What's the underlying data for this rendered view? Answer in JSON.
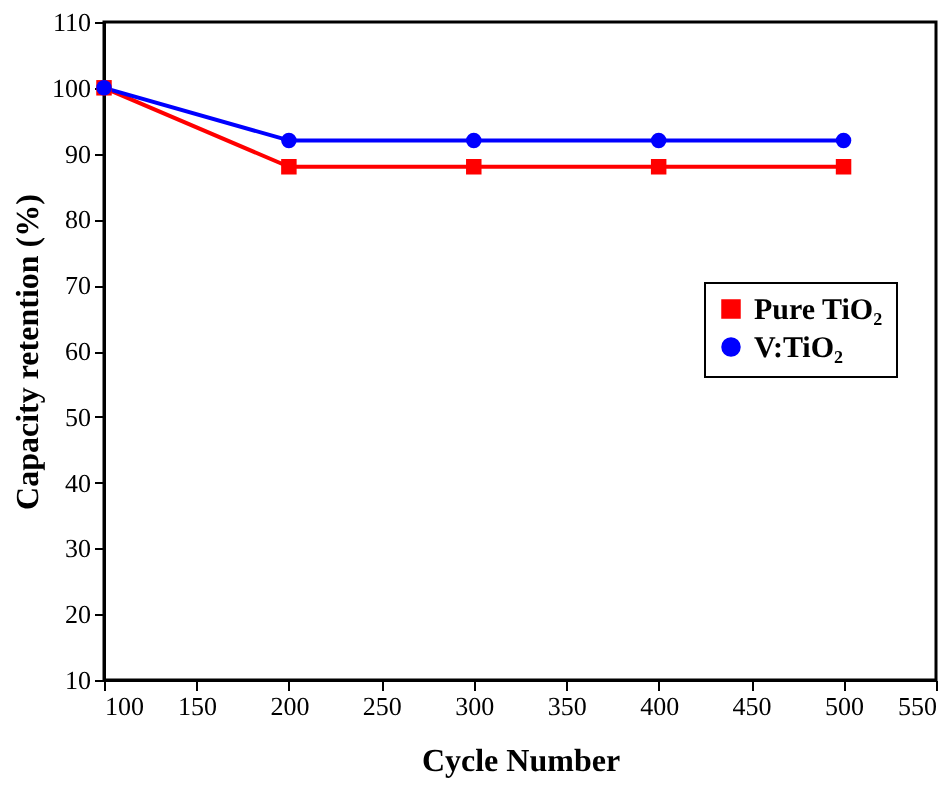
{
  "chart_data": {
    "type": "line",
    "xlabel": "Cycle Number",
    "ylabel": "Capacity retention (%)",
    "x": [
      100,
      200,
      300,
      400,
      500
    ],
    "series": [
      {
        "name": "Pure TiO₂",
        "color": "#ff0000",
        "marker": "square",
        "values": [
          100,
          88,
          88,
          88,
          88
        ]
      },
      {
        "name": "V:TiO₂",
        "color": "#0000ff",
        "marker": "circle",
        "values": [
          100,
          92,
          92,
          92,
          92
        ]
      }
    ],
    "xlim": [
      100,
      550
    ],
    "xticks": [
      100,
      150,
      200,
      250,
      300,
      350,
      400,
      450,
      500,
      550
    ],
    "ylim": [
      10,
      110
    ],
    "yticks": [
      10,
      20,
      30,
      40,
      50,
      60,
      70,
      80,
      90,
      100,
      110
    ],
    "grid": false,
    "legend": "right",
    "line_style": "solid"
  }
}
